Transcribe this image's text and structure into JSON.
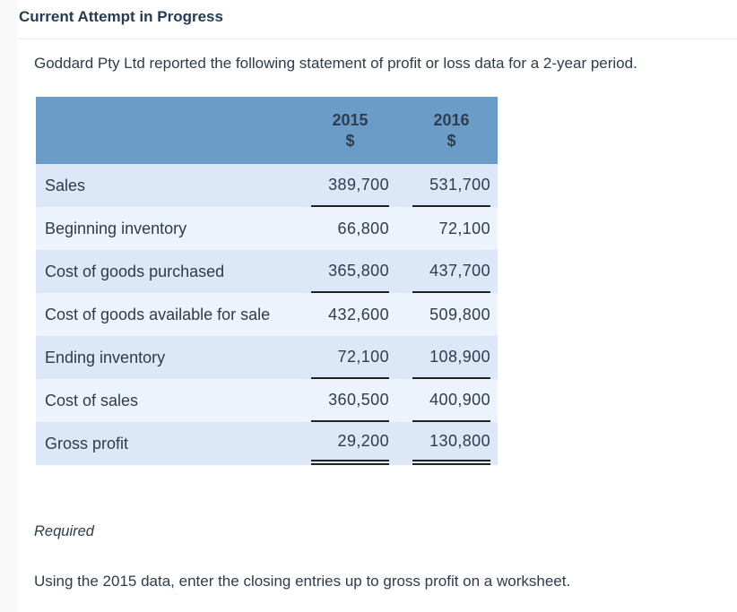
{
  "page": {
    "heading": "Current Attempt in Progress",
    "intro": "Goddard Pty Ltd reported the following statement of profit or loss data for a 2-year period.",
    "required_label": "Required",
    "instruction": "Using the 2015 data, enter the closing entries up to gross profit on a worksheet."
  },
  "table": {
    "columns": [
      {
        "label": "2015",
        "unit": "$"
      },
      {
        "label": "2016",
        "unit": "$"
      }
    ],
    "rows": [
      {
        "label": "Sales",
        "y2015": "389,700",
        "y2016": "531,700",
        "underline": "single"
      },
      {
        "label": "Beginning inventory",
        "y2015": "66,800",
        "y2016": "72,100",
        "underline": "none"
      },
      {
        "label": "Cost of goods purchased",
        "y2015": "365,800",
        "y2016": "437,700",
        "underline": "single"
      },
      {
        "label": "Cost of goods available for sale",
        "y2015": "432,600",
        "y2016": "509,800",
        "underline": "none"
      },
      {
        "label": "Ending inventory",
        "y2015": "72,100",
        "y2016": "108,900",
        "underline": "single"
      },
      {
        "label": "Cost of sales",
        "y2015": "360,500",
        "y2016": "400,900",
        "underline": "single"
      },
      {
        "label": "Gross profit",
        "y2015": "29,200",
        "y2016": "130,800",
        "underline": "double"
      }
    ]
  },
  "colors": {
    "header_bg": "#6b9cc8",
    "header_text": "#2d3e50",
    "row_dark": "#dce8f7",
    "row_light": "#edf3fc",
    "text_color": "#2d3b4e",
    "heading_color": "#243c52",
    "rule_color": "#222222",
    "divider_color": "#e8e8e8",
    "strip_bg": "#f9f9f9"
  }
}
